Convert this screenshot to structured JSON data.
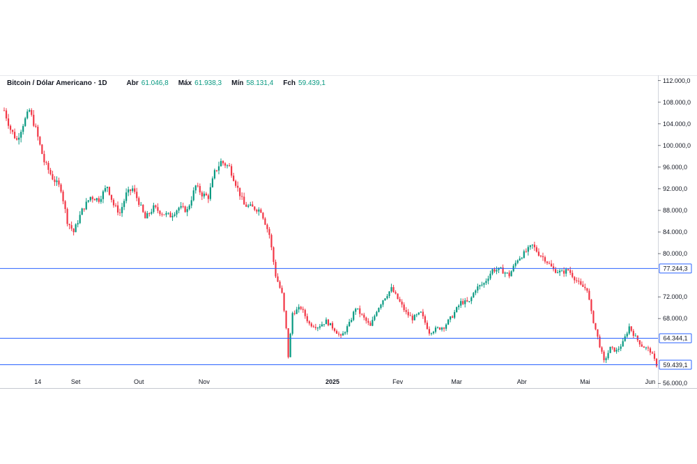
{
  "header": {
    "title": "Bitcoin / Dólar Americano · 1D",
    "open_label": "Abr",
    "open_value": "61.046,8",
    "high_label": "Máx",
    "high_value": "61.938,3",
    "low_label": "Mín",
    "low_value": "58.131,4",
    "close_label": "Fch",
    "close_value": "59.439,1"
  },
  "colors": {
    "up": "#089981",
    "down": "#f23645",
    "level": "#2962ff"
  },
  "chart_data": {
    "type": "candlestick",
    "ylim": [
      55000,
      113000
    ],
    "yticks": [
      "112.000,0",
      "108.000,0",
      "104.000,0",
      "100.000,0",
      "96.000,0",
      "92.000,0",
      "88.000,0",
      "84.000,0",
      "80.000,0",
      "72.000,0",
      "68.000,0",
      "56.000,0"
    ],
    "ytick_values": [
      112000,
      108000,
      104000,
      100000,
      96000,
      92000,
      88000,
      84000,
      80000,
      72000,
      68000,
      56000
    ],
    "x_start": "2024-07-29",
    "x_end": "2025-06-04",
    "xticks": [
      {
        "label": "14",
        "date": "2024-08-14",
        "bold": false
      },
      {
        "label": "Set",
        "date": "2024-09-01",
        "bold": false
      },
      {
        "label": "Out",
        "date": "2024-10-01",
        "bold": false
      },
      {
        "label": "Nov",
        "date": "2024-11-01",
        "bold": false
      },
      {
        "label": "2025",
        "date": "2025-01-01",
        "bold": true
      },
      {
        "label": "Fev",
        "date": "2025-02-01",
        "bold": false
      },
      {
        "label": "Mar",
        "date": "2025-03-01",
        "bold": false
      },
      {
        "label": "Abr",
        "date": "2025-04-01",
        "bold": false
      },
      {
        "label": "Mai",
        "date": "2025-05-01",
        "bold": false
      },
      {
        "label": "Jun",
        "date": "2025-06-01",
        "bold": false
      }
    ],
    "levels": [
      {
        "value": 77244.3,
        "label": "77.244,3"
      },
      {
        "value": 64344.1,
        "label": "64.344,1"
      },
      {
        "value": 59439.1,
        "label": "59.439,1"
      }
    ],
    "close_path": [
      [
        "2024-07-29",
        106500
      ],
      [
        "2024-08-01",
        103000
      ],
      [
        "2024-08-04",
        101000
      ],
      [
        "2024-08-07",
        104000
      ],
      [
        "2024-08-10",
        106500
      ],
      [
        "2024-08-13",
        103000
      ],
      [
        "2024-08-17",
        97000
      ],
      [
        "2024-08-21",
        94000
      ],
      [
        "2024-08-25",
        92000
      ],
      [
        "2024-08-28",
        86000
      ],
      [
        "2024-08-31",
        84000
      ],
      [
        "2024-09-04",
        88000
      ],
      [
        "2024-09-08",
        90500
      ],
      [
        "2024-09-12",
        90000
      ],
      [
        "2024-09-16",
        92500
      ],
      [
        "2024-09-19",
        89000
      ],
      [
        "2024-09-22",
        87500
      ],
      [
        "2024-09-25",
        91000
      ],
      [
        "2024-09-28",
        92000
      ],
      [
        "2024-10-01",
        89500
      ],
      [
        "2024-10-04",
        86500
      ],
      [
        "2024-10-08",
        88500
      ],
      [
        "2024-10-12",
        87500
      ],
      [
        "2024-10-16",
        87000
      ],
      [
        "2024-10-20",
        88500
      ],
      [
        "2024-10-24",
        88000
      ],
      [
        "2024-10-28",
        92500
      ],
      [
        "2024-10-31",
        91000
      ],
      [
        "2024-11-03",
        90500
      ],
      [
        "2024-11-06",
        95000
      ],
      [
        "2024-11-09",
        97000
      ],
      [
        "2024-11-13",
        96000
      ],
      [
        "2024-11-16",
        93000
      ],
      [
        "2024-11-20",
        89000
      ],
      [
        "2024-11-24",
        88500
      ],
      [
        "2024-11-28",
        88000
      ],
      [
        "2024-12-02",
        83500
      ],
      [
        "2024-12-05",
        76000
      ],
      [
        "2024-12-08",
        72500
      ],
      [
        "2024-12-10",
        66000
      ],
      [
        "2024-12-11",
        61000
      ],
      [
        "2024-12-13",
        69000
      ],
      [
        "2024-12-17",
        70000
      ],
      [
        "2024-12-21",
        67000
      ],
      [
        "2024-12-25",
        66500
      ],
      [
        "2024-12-29",
        67500
      ],
      [
        "2025-01-02",
        66000
      ],
      [
        "2025-01-05",
        64500
      ],
      [
        "2025-01-09",
        67000
      ],
      [
        "2025-01-12",
        70000
      ],
      [
        "2025-01-15",
        68500
      ],
      [
        "2025-01-19",
        66500
      ],
      [
        "2025-01-22",
        69500
      ],
      [
        "2025-01-25",
        71500
      ],
      [
        "2025-01-29",
        73500
      ],
      [
        "2025-02-02",
        71000
      ],
      [
        "2025-02-05",
        69000
      ],
      [
        "2025-02-08",
        68000
      ],
      [
        "2025-02-12",
        69000
      ],
      [
        "2025-02-16",
        65500
      ],
      [
        "2025-02-19",
        66000
      ],
      [
        "2025-02-23",
        66500
      ],
      [
        "2025-02-27",
        68500
      ],
      [
        "2025-03-03",
        71000
      ],
      [
        "2025-03-07",
        71000
      ],
      [
        "2025-03-10",
        73500
      ],
      [
        "2025-03-14",
        74500
      ],
      [
        "2025-03-18",
        77000
      ],
      [
        "2025-03-22",
        77000
      ],
      [
        "2025-03-26",
        76000
      ],
      [
        "2025-03-30",
        79000
      ],
      [
        "2025-04-02",
        80000
      ],
      [
        "2025-04-06",
        81500
      ],
      [
        "2025-04-09",
        80000
      ],
      [
        "2025-04-12",
        79000
      ],
      [
        "2025-04-16",
        77000
      ],
      [
        "2025-04-20",
        76500
      ],
      [
        "2025-04-23",
        77000
      ],
      [
        "2025-04-26",
        75500
      ],
      [
        "2025-04-29",
        74000
      ],
      [
        "2025-05-02",
        73500
      ],
      [
        "2025-05-04",
        69000
      ],
      [
        "2025-05-06",
        66000
      ],
      [
        "2025-05-08",
        63000
      ],
      [
        "2025-05-10",
        60000
      ],
      [
        "2025-05-13",
        62500
      ],
      [
        "2025-05-16",
        62000
      ],
      [
        "2025-05-19",
        63500
      ],
      [
        "2025-05-22",
        66500
      ],
      [
        "2025-05-25",
        64500
      ],
      [
        "2025-05-28",
        63000
      ],
      [
        "2025-06-01",
        62000
      ],
      [
        "2025-06-04",
        59439.1
      ]
    ]
  }
}
